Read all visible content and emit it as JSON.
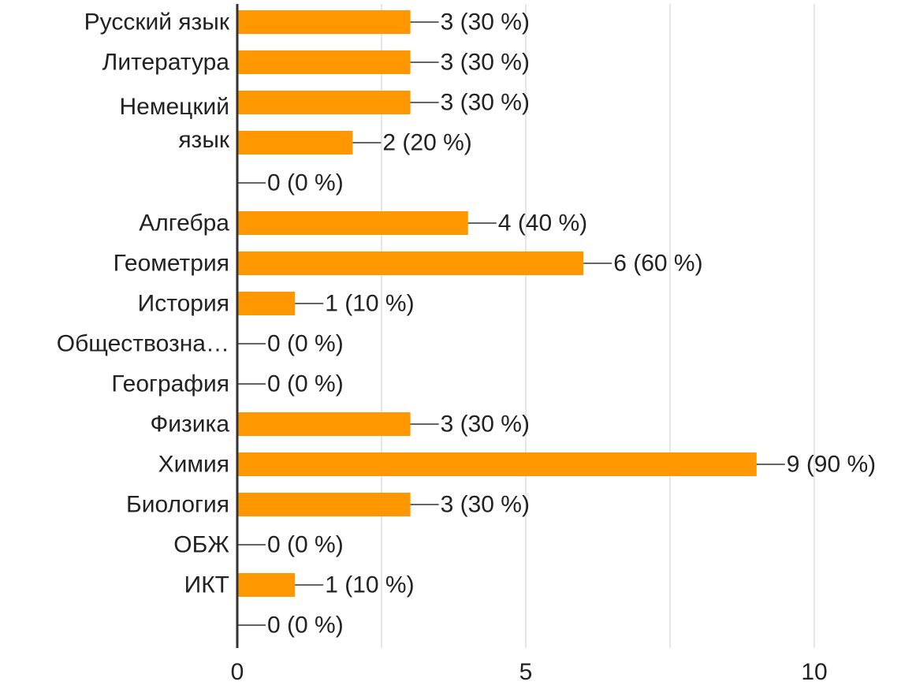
{
  "chart_data": {
    "type": "bar",
    "orientation": "horizontal",
    "categories": [
      "Русский язык",
      "Литература",
      "",
      "Немецкий язык",
      "",
      "Алгебра",
      "Геометрия",
      "История",
      "Обществозна…",
      "География",
      "Физика",
      "Химия",
      "Биология",
      "ОБЖ",
      "ИКТ",
      ""
    ],
    "values": [
      3,
      3,
      3,
      2,
      0,
      4,
      6,
      1,
      0,
      0,
      3,
      9,
      3,
      0,
      1,
      0
    ],
    "value_labels": [
      "3 (30 %)",
      "3 (30 %)",
      "3 (30 %)",
      "2 (20 %)",
      "0 (0 %)",
      "4 (40 %)",
      "6 (60 %)",
      "1 (10 %)",
      "0 (0 %)",
      "0 (0 %)",
      "3 (30 %)",
      "9 (90 %)",
      "3 (30 %)",
      "0 (0 %)",
      "1 (10 %)",
      "0 (0 %)"
    ],
    "xlim": [
      0,
      10
    ],
    "x_ticks": [
      {
        "value": 0,
        "label": "0"
      },
      {
        "value": 5,
        "label": "5"
      },
      {
        "value": 10,
        "label": "10"
      }
    ],
    "grid": true,
    "legend": "none",
    "colors": {
      "bar": "#FF9800",
      "axis": "#333333",
      "grid": "#e6e6e6",
      "leader": "#666666",
      "text": "#222222"
    }
  }
}
